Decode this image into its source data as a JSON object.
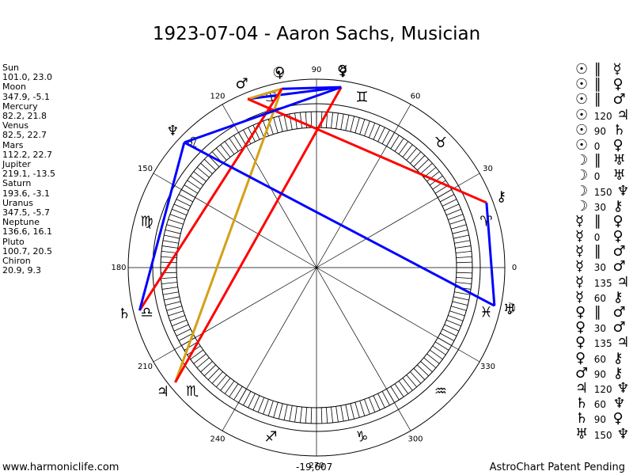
{
  "title": "1923-07-04 - Aaron Sachs, Musician",
  "planets": [
    {
      "name": "Sun",
      "coords": "101.0, 23.0"
    },
    {
      "name": "Moon",
      "coords": "347.9, -5.1"
    },
    {
      "name": "Mercury",
      "coords": "82.2, 21.8"
    },
    {
      "name": "Venus",
      "coords": "82.5, 22.7"
    },
    {
      "name": "Mars",
      "coords": "112.2, 22.7"
    },
    {
      "name": "Jupiter",
      "coords": "219.1, -13.5"
    },
    {
      "name": "Saturn",
      "coords": "193.6, -3.1"
    },
    {
      "name": "Uranus",
      "coords": "347.5, -5.7"
    },
    {
      "name": "Neptune",
      "coords": "136.6, 16.1"
    },
    {
      "name": "Pluto",
      "coords": "100.7, 20.5"
    },
    {
      "name": "Chiron",
      "coords": "20.9, 9.3"
    }
  ],
  "aspects": [
    {
      "p1": "☉",
      "asp": "∥",
      "p2": "☿"
    },
    {
      "p1": "☉",
      "asp": "∥",
      "p2": "♀"
    },
    {
      "p1": "☉",
      "asp": "∥",
      "p2": "♂"
    },
    {
      "p1": "☉",
      "asp": "120",
      "p2": "♃"
    },
    {
      "p1": "☉",
      "asp": "90",
      "p2": "♄"
    },
    {
      "p1": "☉",
      "asp": "0",
      "p2": "♀"
    },
    {
      "p1": "☽",
      "asp": "∥",
      "p2": "♅"
    },
    {
      "p1": "☽",
      "asp": "0",
      "p2": "♅"
    },
    {
      "p1": "☽",
      "asp": "150",
      "p2": "♆"
    },
    {
      "p1": "☽",
      "asp": "30",
      "p2": "⚷"
    },
    {
      "p1": "☿",
      "asp": "∥",
      "p2": "♀"
    },
    {
      "p1": "☿",
      "asp": "0",
      "p2": "♀"
    },
    {
      "p1": "☿",
      "asp": "∥",
      "p2": "♂"
    },
    {
      "p1": "☿",
      "asp": "30",
      "p2": "♂"
    },
    {
      "p1": "☿",
      "asp": "135",
      "p2": "♃"
    },
    {
      "p1": "☿",
      "asp": "60",
      "p2": "⚷"
    },
    {
      "p1": "♀",
      "asp": "∥",
      "p2": "♂"
    },
    {
      "p1": "♀",
      "asp": "30",
      "p2": "♂"
    },
    {
      "p1": "♀",
      "asp": "135",
      "p2": "♃"
    },
    {
      "p1": "♀",
      "asp": "60",
      "p2": "⚷"
    },
    {
      "p1": "♂",
      "asp": "90",
      "p2": "⚷"
    },
    {
      "p1": "♃",
      "asp": "120",
      "p2": "♆"
    },
    {
      "p1": "♄",
      "asp": "60",
      "p2": "♆"
    },
    {
      "p1": "♄",
      "asp": "90",
      "p2": "♀"
    },
    {
      "p1": "♅",
      "asp": "150",
      "p2": "♆"
    }
  ],
  "wheel": {
    "degree_labels": [
      {
        "deg": 0,
        "text": "0"
      },
      {
        "deg": 30,
        "text": "30"
      },
      {
        "deg": 60,
        "text": "60"
      },
      {
        "deg": 90,
        "text": "90"
      },
      {
        "deg": 120,
        "text": "120"
      },
      {
        "deg": 150,
        "text": "150"
      },
      {
        "deg": 180,
        "text": "180"
      },
      {
        "deg": 210,
        "text": "210"
      },
      {
        "deg": 240,
        "text": "240"
      },
      {
        "deg": 270,
        "text": "270"
      },
      {
        "deg": 300,
        "text": "300"
      },
      {
        "deg": 330,
        "text": "330"
      }
    ],
    "signs": [
      {
        "name": "aries",
        "glyph": "♈",
        "deg": 15
      },
      {
        "name": "taurus",
        "glyph": "♉",
        "deg": 45
      },
      {
        "name": "gemini",
        "glyph": "♊",
        "deg": 75
      },
      {
        "name": "cancer",
        "glyph": "♋",
        "deg": 105
      },
      {
        "name": "leo",
        "glyph": "♌",
        "deg": 135
      },
      {
        "name": "virgo",
        "glyph": "♍",
        "deg": 165
      },
      {
        "name": "libra",
        "glyph": "♎",
        "deg": 195
      },
      {
        "name": "scorpio",
        "glyph": "♏",
        "deg": 225
      },
      {
        "name": "sagittarius",
        "glyph": "♐",
        "deg": 255
      },
      {
        "name": "capricorn",
        "glyph": "♑",
        "deg": 285
      },
      {
        "name": "aquarius",
        "glyph": "♒",
        "deg": 315
      },
      {
        "name": "pisces",
        "glyph": "♓",
        "deg": 345
      }
    ],
    "bodies": [
      {
        "name": "sun",
        "glyph": "☉",
        "deg": 101.0
      },
      {
        "name": "moon",
        "glyph": "☽",
        "deg": 347.9
      },
      {
        "name": "mercury",
        "glyph": "☿",
        "deg": 82.2
      },
      {
        "name": "venus",
        "glyph": "♀",
        "deg": 82.5
      },
      {
        "name": "mars",
        "glyph": "♂",
        "deg": 112.2
      },
      {
        "name": "jupiter",
        "glyph": "♃",
        "deg": 219.1
      },
      {
        "name": "saturn",
        "glyph": "♄",
        "deg": 193.6
      },
      {
        "name": "uranus",
        "glyph": "♅",
        "deg": 347.5
      },
      {
        "name": "neptune",
        "glyph": "♆",
        "deg": 136.6
      },
      {
        "name": "pluto",
        "glyph": "♀",
        "deg": 100.7
      },
      {
        "name": "chiron",
        "glyph": "⚷",
        "deg": 20.9
      }
    ],
    "aspect_lines": [
      {
        "from": 101.0,
        "to": 82.2,
        "color": "#0000ff"
      },
      {
        "from": 82.2,
        "to": 112.2,
        "color": "#0000ff"
      },
      {
        "from": 112.2,
        "to": 101.0,
        "color": "#d4a017"
      },
      {
        "from": 101.0,
        "to": 219.1,
        "color": "#d4a017"
      },
      {
        "from": 101.0,
        "to": 193.6,
        "color": "#ff0000"
      },
      {
        "from": 82.2,
        "to": 219.1,
        "color": "#ff0000"
      },
      {
        "from": 112.2,
        "to": 20.9,
        "color": "#ff0000"
      },
      {
        "from": 20.9,
        "to": 347.9,
        "color": "#0000ff"
      },
      {
        "from": 347.9,
        "to": 136.6,
        "color": "#0000ff"
      },
      {
        "from": 136.6,
        "to": 193.6,
        "color": "#0000ff"
      },
      {
        "from": 82.2,
        "to": 136.6,
        "color": "#0000ff"
      }
    ]
  },
  "footer": {
    "left": "www.harmoniclife.com",
    "center": "-19,607",
    "right": "AstroChart Patent Pending"
  }
}
